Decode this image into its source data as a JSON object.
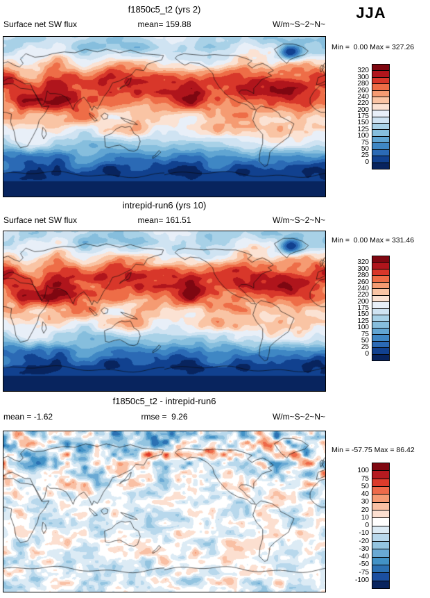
{
  "season_label": "JJA",
  "chart_data": {
    "type": "heatmap",
    "season": "JJA",
    "panels": [
      {
        "title": "f1850c5_t2 (yrs 2)",
        "variable_label": "Surface net SW flux",
        "mean_label": "mean= 159.88",
        "units_label": "W/m~S~2~N~",
        "minmax_label": "Min =  0.00 Max = 327.26",
        "mean": 159.88,
        "min": 0.0,
        "max": 327.26,
        "levels": [
          0,
          25,
          50,
          75,
          100,
          125,
          150,
          175,
          200,
          220,
          240,
          260,
          280,
          300,
          320
        ],
        "palette_low_to_high": [
          "#08245e",
          "#11418f",
          "#2b6ab5",
          "#3f87c4",
          "#61a5d2",
          "#86bedd",
          "#a8d1e7",
          "#cfe3f2",
          "#e8eff8",
          "#fbe2d3",
          "#f9c4a4",
          "#f59b72",
          "#ee6d47",
          "#d8372a",
          "#b0151c",
          "#7f0711"
        ]
      },
      {
        "title": "intrepid-run6 (yrs 10)",
        "variable_label": "Surface net SW flux",
        "mean_label": "mean= 161.51",
        "units_label": "W/m~S~2~N~",
        "minmax_label": "Min =  0.00 Max = 331.46",
        "mean": 161.51,
        "min": 0.0,
        "max": 331.46,
        "levels": [
          0,
          25,
          50,
          75,
          100,
          125,
          150,
          175,
          200,
          220,
          240,
          260,
          280,
          300,
          320
        ],
        "palette_low_to_high": [
          "#08245e",
          "#11418f",
          "#2b6ab5",
          "#3f87c4",
          "#61a5d2",
          "#86bedd",
          "#a8d1e7",
          "#cfe3f2",
          "#e8eff8",
          "#fbe2d3",
          "#f9c4a4",
          "#f59b72",
          "#ee6d47",
          "#d8372a",
          "#b0151c",
          "#7f0711"
        ]
      },
      {
        "title": "f1850c5_t2 - intrepid-run6",
        "mean_label": "mean = -1.62",
        "rmse_label": "rmse =  9.26",
        "units_label": "W/m~S~2~N~",
        "minmax_label": "Min = -57.75 Max = 86.42",
        "mean": -1.62,
        "rmse": 9.26,
        "min": -57.75,
        "max": 86.42,
        "levels": [
          -100,
          -75,
          -50,
          -40,
          -30,
          -20,
          -10,
          0,
          10,
          20,
          30,
          40,
          50,
          75,
          100
        ],
        "palette_low_to_high": [
          "#08245e",
          "#1b4fa0",
          "#2c71b3",
          "#4292c6",
          "#69a9d4",
          "#93c4e0",
          "#b8d8ec",
          "#dcebf5",
          "#ffffff",
          "#fcdfd0",
          "#f9c0a4",
          "#f59a74",
          "#ee6a4a",
          "#dc3b2b",
          "#b51a20",
          "#7f0711"
        ]
      }
    ]
  }
}
